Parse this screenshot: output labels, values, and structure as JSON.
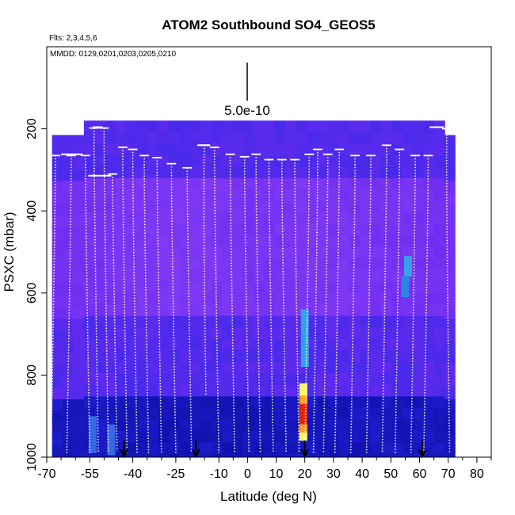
{
  "chart_data": {
    "type": "heatmap",
    "title": "ATOM2 Southbound SO4_GEOS5",
    "flights_label": "Flts: 2,3,4,5,6",
    "dates_label": "MMDD: 0129,0201,0203,0205,0210",
    "scale_label": "5.0e-10",
    "xlabel": "Latitude (deg N)",
    "ylabel": "PSXC (mbar)",
    "xlim": [
      -70,
      85
    ],
    "ylim": [
      1000,
      0
    ],
    "x_ticks": [
      -70,
      -55,
      -40,
      -25,
      -10,
      0,
      10,
      20,
      30,
      40,
      50,
      60,
      70,
      80
    ],
    "x_tick_labels": [
      "-70",
      "-55",
      "-40",
      "-25",
      "-10",
      "0",
      "10",
      "20",
      "30",
      "40",
      "50",
      "60",
      "70",
      "80"
    ],
    "x_minor_ticks": [
      -65,
      -60,
      -50,
      -45,
      -35,
      -30,
      -20,
      -15,
      -5,
      5,
      15,
      25,
      35,
      45,
      55,
      65,
      75,
      85
    ],
    "y_ticks": [
      200,
      400,
      600,
      800,
      1000
    ],
    "y_tick_labels": [
      "200",
      "400",
      "600",
      "800",
      "1000"
    ],
    "colormap": [
      "#0a0a9a",
      "#1e1ed0",
      "#3a2ae8",
      "#6a2af0",
      "#8a3ef5",
      "#30a8e8",
      "#ffff60",
      "#ff9a20",
      "#e02010"
    ],
    "columns": [
      {
        "lat": -66.3,
        "top": 215,
        "dark": 0.55,
        "lateral": 0.2
      },
      {
        "lat": -62.6,
        "top": 215,
        "dark": 0.55,
        "lateral": 0.25
      },
      {
        "lat": -58.9,
        "top": 215,
        "dark": 0.55,
        "lateral": 0.3
      },
      {
        "lat": -55.2,
        "top": 180,
        "dark": 0.55,
        "lateral": 0.35
      },
      {
        "lat": -51.5,
        "top": 180,
        "dark": 0.55,
        "lateral": 0.4
      },
      {
        "lat": -47.8,
        "top": 180,
        "dark": 0.5,
        "lateral": 0.45
      },
      {
        "lat": -44.1,
        "top": 180,
        "dark": 0.45,
        "lateral": 0.5
      },
      {
        "lat": -40.4,
        "top": 180,
        "dark": 0.4,
        "lateral": 0.55
      },
      {
        "lat": -36.7,
        "top": 180,
        "dark": 0.4,
        "lateral": 0.6
      },
      {
        "lat": -33.0,
        "top": 180,
        "dark": 0.4,
        "lateral": 0.62
      },
      {
        "lat": -29.3,
        "top": 180,
        "dark": 0.35,
        "lateral": 0.65
      },
      {
        "lat": -25.6,
        "top": 180,
        "dark": 0.35,
        "lateral": 0.67
      },
      {
        "lat": -21.9,
        "top": 180,
        "dark": 0.35,
        "lateral": 0.7
      },
      {
        "lat": -18.2,
        "top": 180,
        "dark": 0.4,
        "lateral": 0.7
      },
      {
        "lat": -14.5,
        "top": 180,
        "dark": 0.45,
        "lateral": 0.65
      },
      {
        "lat": -10.8,
        "top": 180,
        "dark": 0.45,
        "lateral": 0.6
      },
      {
        "lat": -7.1,
        "top": 180,
        "dark": 0.4,
        "lateral": 0.5
      },
      {
        "lat": -3.4,
        "top": 180,
        "dark": 0.4,
        "lateral": 0.45
      },
      {
        "lat": 0.3,
        "top": 180,
        "dark": 0.4,
        "lateral": 0.4
      },
      {
        "lat": 4.0,
        "top": 180,
        "dark": 0.4,
        "lateral": 0.4
      },
      {
        "lat": 7.7,
        "top": 180,
        "dark": 0.4,
        "lateral": 0.45
      },
      {
        "lat": 11.4,
        "top": 180,
        "dark": 0.45,
        "lateral": 0.5
      },
      {
        "lat": 15.1,
        "top": 180,
        "dark": 0.45,
        "lateral": 0.55
      },
      {
        "lat": 18.8,
        "top": 180,
        "dark": 0.5,
        "lateral": 0.6
      },
      {
        "lat": 22.5,
        "top": 180,
        "dark": 0.5,
        "lateral": 0.6
      },
      {
        "lat": 26.2,
        "top": 180,
        "dark": 0.45,
        "lateral": 0.55
      },
      {
        "lat": 29.9,
        "top": 180,
        "dark": 0.45,
        "lateral": 0.5
      },
      {
        "lat": 33.6,
        "top": 180,
        "dark": 0.45,
        "lateral": 0.5
      },
      {
        "lat": 37.3,
        "top": 180,
        "dark": 0.45,
        "lateral": 0.45
      },
      {
        "lat": 41.0,
        "top": 180,
        "dark": 0.45,
        "lateral": 0.45
      },
      {
        "lat": 44.7,
        "top": 180,
        "dark": 0.5,
        "lateral": 0.4
      },
      {
        "lat": 48.4,
        "top": 180,
        "dark": 0.5,
        "lateral": 0.4
      },
      {
        "lat": 52.1,
        "top": 180,
        "dark": 0.5,
        "lateral": 0.35
      },
      {
        "lat": 55.8,
        "top": 180,
        "dark": 0.5,
        "lateral": 0.35
      },
      {
        "lat": 59.5,
        "top": 180,
        "dark": 0.5,
        "lateral": 0.3
      },
      {
        "lat": 63.2,
        "top": 180,
        "dark": 0.5,
        "lateral": 0.3
      },
      {
        "lat": 66.9,
        "top": 180,
        "dark": 0.5,
        "lateral": 0.25
      },
      {
        "lat": 70.5,
        "top": 215,
        "dark": 0.5,
        "lateral": 0.25
      }
    ],
    "hotspots": [
      {
        "lat": 19.5,
        "p_top": 820,
        "p_bottom": 960,
        "color": "#ffff60"
      },
      {
        "lat": 19.5,
        "p_top": 850,
        "p_bottom": 940,
        "color": "#ff9a20"
      },
      {
        "lat": 19.5,
        "p_top": 870,
        "p_bottom": 920,
        "color": "#e02010"
      },
      {
        "lat": 20.0,
        "p_top": 640,
        "p_bottom": 780,
        "color": "#30a8e8"
      },
      {
        "lat": 56.0,
        "p_top": 510,
        "p_bottom": 560,
        "color": "#30a8e8"
      },
      {
        "lat": 55.0,
        "p_top": 560,
        "p_bottom": 610,
        "color": "#2a8ae0"
      },
      {
        "lat": -54.0,
        "p_top": 900,
        "p_bottom": 990,
        "color": "#3a6ae8"
      },
      {
        "lat": -47.5,
        "p_top": 920,
        "p_bottom": 995,
        "color": "#3a6ae8"
      }
    ],
    "profiles": [
      {
        "lat_top": -67.0,
        "p_top": 265,
        "lat_bottom": -68.5,
        "p_bottom": 985
      },
      {
        "lat_top": -61.5,
        "p_top": 265,
        "lat_bottom": -63.0,
        "p_bottom": 990
      },
      {
        "lat_top": -56.5,
        "p_top": 265,
        "lat_bottom": -55.0,
        "p_bottom": 990
      },
      {
        "lat_top": -53.5,
        "p_top": 198,
        "lat_bottom": -52.0,
        "p_bottom": 990
      },
      {
        "lat_top": -50.0,
        "p_top": 198,
        "lat_bottom": -48.5,
        "p_bottom": 990
      },
      {
        "lat_top": -47.0,
        "p_top": 310,
        "lat_bottom": -45.5,
        "p_bottom": 985
      },
      {
        "lat_top": -43.5,
        "p_top": 245,
        "lat_bottom": -42.0,
        "p_bottom": 990
      },
      {
        "lat_top": -40.0,
        "p_top": 250,
        "lat_bottom": -38.5,
        "p_bottom": 990
      },
      {
        "lat_top": -36.0,
        "p_top": 265,
        "lat_bottom": -34.5,
        "p_bottom": 990
      },
      {
        "lat_top": -31.5,
        "p_top": 270,
        "lat_bottom": -30.0,
        "p_bottom": 990
      },
      {
        "lat_top": -26.5,
        "p_top": 285,
        "lat_bottom": -25.0,
        "p_bottom": 990
      },
      {
        "lat_top": -21.0,
        "p_top": 295,
        "lat_bottom": -19.5,
        "p_bottom": 990
      },
      {
        "lat_top": -15.0,
        "p_top": 240,
        "lat_bottom": -14.5,
        "p_bottom": 850
      },
      {
        "lat_top": -11.5,
        "p_top": 245,
        "lat_bottom": -10.0,
        "p_bottom": 990
      },
      {
        "lat_top": -6.0,
        "p_top": 262,
        "lat_bottom": -4.5,
        "p_bottom": 990
      },
      {
        "lat_top": -1.0,
        "p_top": 268,
        "lat_bottom": 0.5,
        "p_bottom": 990
      },
      {
        "lat_top": 3.0,
        "p_top": 262,
        "lat_bottom": 4.5,
        "p_bottom": 990
      },
      {
        "lat_top": 7.5,
        "p_top": 275,
        "lat_bottom": 9.0,
        "p_bottom": 990
      },
      {
        "lat_top": 12.0,
        "p_top": 275,
        "lat_bottom": 13.5,
        "p_bottom": 990
      },
      {
        "lat_top": 16.5,
        "p_top": 275,
        "lat_bottom": 18.0,
        "p_bottom": 990
      },
      {
        "lat_top": 21.5,
        "p_top": 262,
        "lat_bottom": 20.0,
        "p_bottom": 990
      },
      {
        "lat_top": 24.5,
        "p_top": 250,
        "lat_bottom": 23.0,
        "p_bottom": 990
      },
      {
        "lat_top": 28.0,
        "p_top": 262,
        "lat_bottom": 26.5,
        "p_bottom": 990
      },
      {
        "lat_top": 32.0,
        "p_top": 250,
        "lat_bottom": 30.5,
        "p_bottom": 990
      },
      {
        "lat_top": 37.5,
        "p_top": 265,
        "lat_bottom": 36.0,
        "p_bottom": 990
      },
      {
        "lat_top": 43.0,
        "p_top": 265,
        "lat_bottom": 41.5,
        "p_bottom": 990
      },
      {
        "lat_top": 48.5,
        "p_top": 240,
        "lat_bottom": 47.0,
        "p_bottom": 990
      },
      {
        "lat_top": 53.0,
        "p_top": 250,
        "lat_bottom": 51.5,
        "p_bottom": 990
      },
      {
        "lat_top": 58.5,
        "p_top": 265,
        "lat_bottom": 57.0,
        "p_bottom": 990
      },
      {
        "lat_top": 63.0,
        "p_top": 265,
        "lat_bottom": 61.5,
        "p_bottom": 990
      },
      {
        "lat_top": 69.5,
        "p_top": 200,
        "lat_bottom": 70.5,
        "p_bottom": 990
      }
    ],
    "top_legs": [
      {
        "lat_start": -68.0,
        "lat_end": -68.0,
        "p": 240
      },
      {
        "lat_start": -65.0,
        "lat_end": -57.5,
        "p": 262
      },
      {
        "lat_start": -54.0,
        "lat_end": -50.5,
        "p": 196
      },
      {
        "lat_start": -55.5,
        "lat_end": -47.5,
        "p": 314
      },
      {
        "lat_start": -17.5,
        "lat_end": -13.0,
        "p": 240
      },
      {
        "lat_start": 63.5,
        "lat_end": 68.5,
        "p": 196
      }
    ],
    "markers_lat": [
      -43,
      -18,
      20,
      61
    ]
  }
}
